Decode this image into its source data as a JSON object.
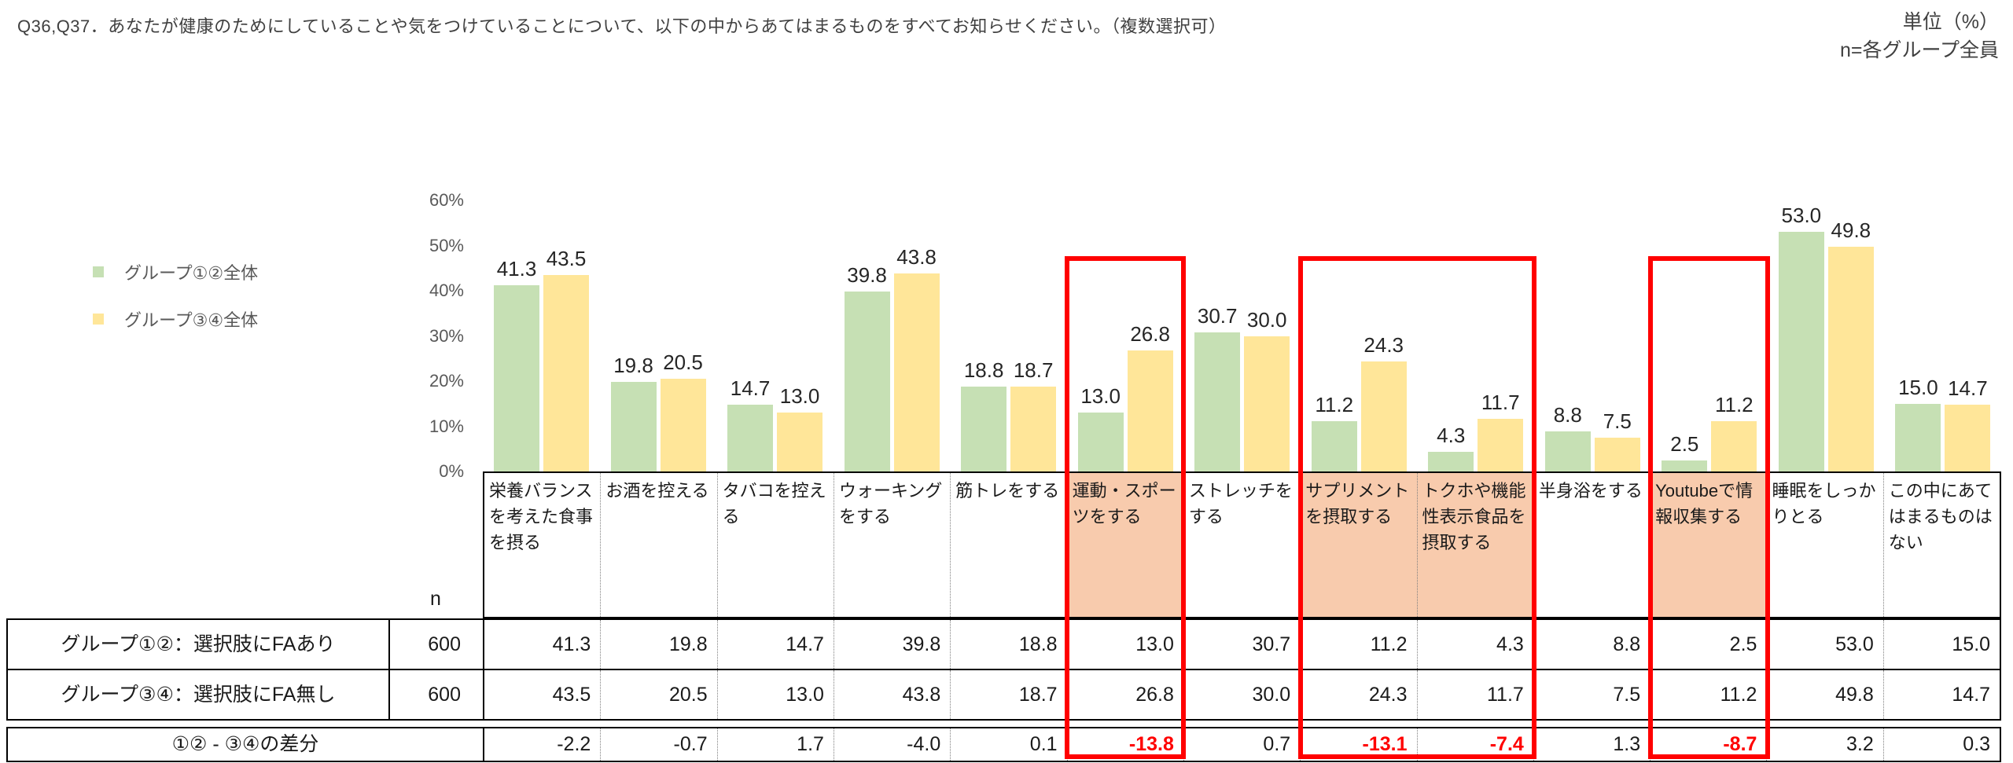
{
  "title": "Q36,Q37．あなたが健康のためにしていることや気をつけていることについて、以下の中からあてはまるものをすべてお知らせください。（複数選択可）",
  "unit_note": {
    "line1": "単位（%）",
    "line2": "n=各グループ全員"
  },
  "legend": [
    {
      "label": "グループ①②全体",
      "color": "#c6e0b4"
    },
    {
      "label": "グループ③④全体",
      "color": "#ffe699"
    }
  ],
  "chart_data": {
    "type": "bar",
    "title": "",
    "categories": [
      "栄養バランスを考えた食事を摂る",
      "お酒を控える",
      "タバコを控える",
      "ウォーキングをする",
      "筋トレをする",
      "運動・スポーツをする",
      "ストレッチをする",
      "サプリメントを摂取する",
      "トクホや機能性表示食品を摂取する",
      "半身浴をする",
      "Youtubeで情報収集する",
      "睡眠をしっかりとる",
      "この中にあてはまるものはない"
    ],
    "series": [
      {
        "name": "グループ①②全体",
        "color": "#c6e0b4",
        "values": [
          "41.3",
          "19.8",
          "14.7",
          "39.8",
          "18.8",
          "13.0",
          "30.7",
          "11.2",
          "4.3",
          "8.8",
          "2.5",
          "53.0",
          "15.0"
        ]
      },
      {
        "name": "グループ③④全体",
        "color": "#ffe699",
        "values": [
          "43.5",
          "20.5",
          "13.0",
          "43.8",
          "18.7",
          "26.8",
          "30.0",
          "24.3",
          "11.7",
          "7.5",
          "11.2",
          "49.8",
          "14.7"
        ]
      }
    ],
    "xlabel": "",
    "ylabel": "",
    "ylim": [
      0,
      60
    ],
    "yticks": [
      "0%",
      "10%",
      "20%",
      "30%",
      "40%",
      "50%",
      "60%"
    ],
    "grid": false,
    "legend_position": "left",
    "data_labels": true
  },
  "table": {
    "n_header": "n",
    "rows": [
      {
        "label": "グループ①②：選択肢にFAあり",
        "n": "600",
        "values": [
          "41.3",
          "19.8",
          "14.7",
          "39.8",
          "18.8",
          "13.0",
          "30.7",
          "11.2",
          "4.3",
          "8.8",
          "2.5",
          "53.0",
          "15.0"
        ]
      },
      {
        "label": "グループ③④：選択肢にFA無し",
        "n": "600",
        "values": [
          "43.5",
          "20.5",
          "13.0",
          "43.8",
          "18.7",
          "26.8",
          "30.0",
          "24.3",
          "11.7",
          "7.5",
          "11.2",
          "49.8",
          "14.7"
        ]
      }
    ],
    "diff_row": {
      "label": "①② - ③④の差分",
      "values": [
        "-2.2",
        "-0.7",
        "1.7",
        "-4.0",
        "0.1",
        "-13.8",
        "0.7",
        "-13.1",
        "-7.4",
        "1.3",
        "-8.7",
        "3.2",
        "0.3"
      ]
    }
  },
  "highlights": {
    "columns": [
      5,
      7,
      8,
      10
    ],
    "boxes": [
      {
        "start": 5,
        "end": 5
      },
      {
        "start": 7,
        "end": 8
      },
      {
        "start": 10,
        "end": 10
      }
    ],
    "cell_bg": "#f8cbad",
    "box_color": "#ff0000",
    "diff_text_color": "#ff0000"
  }
}
